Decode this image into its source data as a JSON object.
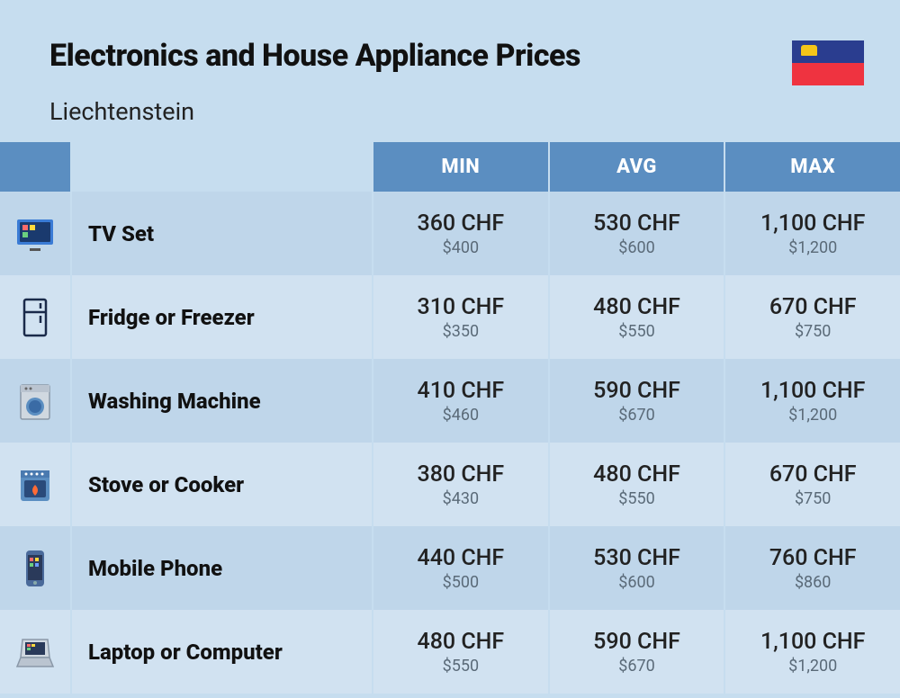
{
  "header": {
    "title": "Electronics and House Appliance Prices",
    "country": "Liechtenstein"
  },
  "columns": [
    "MIN",
    "AVG",
    "MAX"
  ],
  "rows": [
    {
      "icon": "tv",
      "name": "TV Set",
      "min": {
        "primary": "360 CHF",
        "secondary": "$400"
      },
      "avg": {
        "primary": "530 CHF",
        "secondary": "$600"
      },
      "max": {
        "primary": "1,100 CHF",
        "secondary": "$1,200"
      }
    },
    {
      "icon": "fridge",
      "name": "Fridge or Freezer",
      "min": {
        "primary": "310 CHF",
        "secondary": "$350"
      },
      "avg": {
        "primary": "480 CHF",
        "secondary": "$550"
      },
      "max": {
        "primary": "670 CHF",
        "secondary": "$750"
      }
    },
    {
      "icon": "washer",
      "name": "Washing Machine",
      "min": {
        "primary": "410 CHF",
        "secondary": "$460"
      },
      "avg": {
        "primary": "590 CHF",
        "secondary": "$670"
      },
      "max": {
        "primary": "1,100 CHF",
        "secondary": "$1,200"
      }
    },
    {
      "icon": "stove",
      "name": "Stove or Cooker",
      "min": {
        "primary": "380 CHF",
        "secondary": "$430"
      },
      "avg": {
        "primary": "480 CHF",
        "secondary": "$550"
      },
      "max": {
        "primary": "670 CHF",
        "secondary": "$750"
      }
    },
    {
      "icon": "phone",
      "name": "Mobile Phone",
      "min": {
        "primary": "440 CHF",
        "secondary": "$500"
      },
      "avg": {
        "primary": "530 CHF",
        "secondary": "$600"
      },
      "max": {
        "primary": "760 CHF",
        "secondary": "$860"
      }
    },
    {
      "icon": "laptop",
      "name": "Laptop or Computer",
      "min": {
        "primary": "480 CHF",
        "secondary": "$550"
      },
      "avg": {
        "primary": "590 CHF",
        "secondary": "$670"
      },
      "max": {
        "primary": "1,100 CHF",
        "secondary": "$1,200"
      }
    }
  ],
  "colors": {
    "page_bg": "#c6ddef",
    "header_bg": "#5b8ec1",
    "row_odd": "#bfd6ea",
    "row_even": "#d1e2f1",
    "text_primary": "#222",
    "text_secondary": "#5a6a78",
    "header_text": "#ffffff"
  }
}
